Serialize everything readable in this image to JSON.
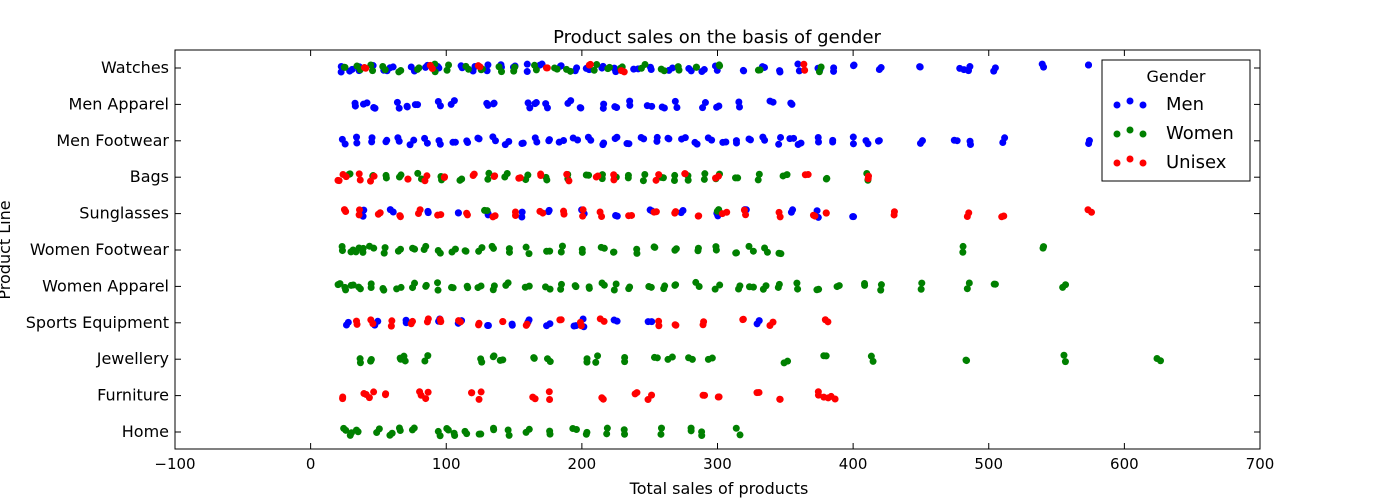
{
  "chart_data": {
    "type": "scatter",
    "title": "Product sales on the basis of gender",
    "xlabel": "Total sales of products",
    "ylabel": "Product Line",
    "xlim": [
      -100,
      700
    ],
    "xticks": [
      -100,
      0,
      100,
      200,
      300,
      400,
      500,
      600,
      700
    ],
    "categories": [
      "Watches",
      "Men Apparel",
      "Men Footwear",
      "Bags",
      "Sunglasses",
      "Women Footwear",
      "Women Apparel",
      "Sports Equipment",
      "Jewellery",
      "Furniture",
      "Home"
    ],
    "grid": false,
    "legend": {
      "title": "Gender",
      "position": "top-right",
      "entries": [
        "Men",
        "Women",
        "Unisex"
      ]
    },
    "colors": {
      "Men": "#0000ff",
      "Women": "#008000",
      "Unisex": "#ff0000"
    },
    "series": [
      {
        "name": "Men",
        "points": [
          [
            "Watches",
            [
              22,
              30,
              35,
              45,
              55,
              60,
              75,
              85,
              95,
              110,
              120,
              130,
              140,
              150,
              160,
              170,
              185,
              195,
              205,
              215,
              225,
              240,
              250,
              265,
              280,
              290,
              300,
              320,
              335,
              345,
              360,
              375,
              385,
              400,
              420,
              450,
              480,
              485,
              505,
              540,
              575
            ]
          ],
          [
            "Men Apparel",
            [
              32,
              40,
              48,
              65,
              72,
              78,
              95,
              105,
              130,
              135,
              160,
              165,
              175,
              190,
              200,
              215,
              225,
              235,
              250,
              260,
              270,
              290,
              300,
              315,
              340,
              355
            ]
          ],
          [
            "Men Footwear",
            [
              25,
              35,
              45,
              55,
              65,
              75,
              85,
              95,
              105,
              115,
              125,
              135,
              145,
              155,
              165,
              175,
              185,
              195,
              205,
              215,
              225,
              235,
              245,
              255,
              265,
              275,
              285,
              295,
              305,
              315,
              325,
              335,
              345,
              355,
              360,
              375,
              385,
              400,
              410,
              420,
              450,
              475,
              485,
              510,
              575
            ]
          ],
          [
            "Sunglasses",
            [
              40,
              60,
              85,
              110,
              130,
              155,
              175,
              200,
              225,
              250,
              275,
              300,
              320,
              355,
              375,
              400
            ]
          ],
          [
            "Sports Equipment",
            [
              28,
              48,
              70,
              95,
              110,
              130,
              150,
              160,
              175,
              195,
              200,
              225,
              250,
              330
            ]
          ]
        ]
      },
      {
        "name": "Women",
        "points": [
          [
            "Watches",
            [
              25,
              35,
              45,
              55,
              65,
              80,
              90,
              100,
              115,
              125,
              140,
              150,
              165,
              180,
              190,
              210,
              220,
              230,
              245,
              260,
              270,
              285,
              300,
              330,
              375
            ]
          ],
          [
            "Bags",
            [
              30,
              45,
              55,
              65,
              80,
              95,
              110,
              130,
              145,
              160,
              175,
              190,
              205,
              215,
              225,
              235,
              245,
              260,
              270,
              280,
              290,
              300,
              315,
              330,
              350,
              380,
              410
            ]
          ],
          [
            "Sunglasses",
            [
              130,
              300
            ]
          ],
          [
            "Women Footwear",
            [
              25,
              30,
              35,
              40,
              45,
              55,
              65,
              75,
              85,
              95,
              105,
              115,
              125,
              135,
              145,
              160,
              175,
              185,
              200,
              215,
              225,
              240,
              255,
              270,
              285,
              300,
              315,
              325,
              335,
              345,
              480,
              540
            ]
          ],
          [
            "Women Apparel",
            [
              20,
              25,
              30,
              35,
              45,
              55,
              65,
              75,
              85,
              95,
              105,
              115,
              125,
              135,
              145,
              160,
              175,
              185,
              195,
              205,
              215,
              225,
              235,
              250,
              260,
              270,
              285,
              300,
              315,
              325,
              335,
              345,
              360,
              375,
              390,
              410,
              420,
              450,
              485,
              505,
              555
            ]
          ],
          [
            "Jewellery",
            [
              35,
              45,
              65,
              70,
              85,
              125,
              135,
              140,
              165,
              175,
              205,
              210,
              230,
              255,
              265,
              280,
              295,
              350,
              380,
              415,
              485,
              555,
              625
            ]
          ],
          [
            "Home",
            [
              25,
              30,
              35,
              50,
              60,
              65,
              75,
              95,
              100,
              105,
              115,
              125,
              135,
              145,
              160,
              175,
              195,
              205,
              220,
              230,
              260,
              280,
              290,
              315
            ]
          ]
        ]
      },
      {
        "name": "Unisex",
        "points": [
          [
            "Watches",
            [
              40,
              90,
              125,
              175,
              205,
              230,
              365
            ]
          ],
          [
            "Bags",
            [
              20,
              25,
              35,
              45,
              70,
              85,
              100,
              120,
              135,
              155,
              170,
              190,
              210,
              225,
              255,
              275,
              300,
              365,
              410
            ]
          ],
          [
            "Sunglasses",
            [
              25,
              35,
              50,
              65,
              80,
              95,
              115,
              135,
              150,
              170,
              185,
              200,
              215,
              235,
              255,
              270,
              285,
              305,
              320,
              345,
              370,
              380,
              430,
              485,
              510,
              575
            ]
          ],
          [
            "Sports Equipment",
            [
              35,
              45,
              60,
              75,
              85,
              95,
              110,
              125,
              140,
              160,
              185,
              200,
              215,
              255,
              270,
              290,
              320,
              340,
              380
            ]
          ],
          [
            "Furniture",
            [
              25,
              40,
              45,
              55,
              80,
              85,
              120,
              125,
              165,
              175,
              215,
              240,
              250,
              290,
              300,
              330,
              345,
              375,
              380,
              385
            ]
          ]
        ]
      }
    ]
  }
}
